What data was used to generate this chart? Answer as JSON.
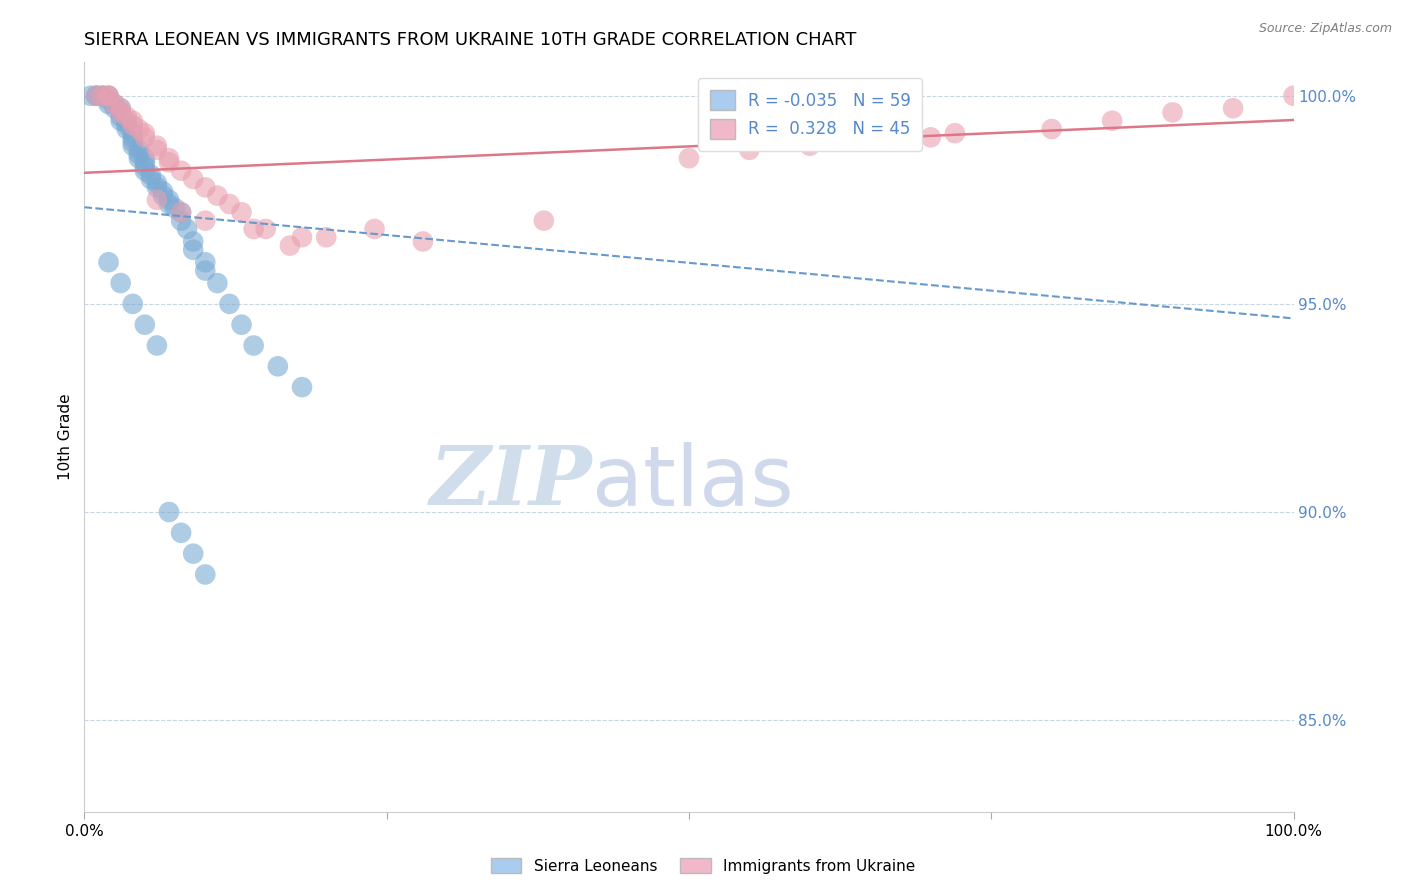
{
  "title": "SIERRA LEONEAN VS IMMIGRANTS FROM UKRAINE 10TH GRADE CORRELATION CHART",
  "source": "Source: ZipAtlas.com",
  "ylabel": "10th Grade",
  "blue_R": -0.035,
  "blue_N": 59,
  "pink_R": 0.328,
  "pink_N": 45,
  "blue_color": "#7aaad4",
  "pink_color": "#e8a0b0",
  "trend_blue_color": "#6699cc",
  "trend_pink_color": "#dd7788",
  "legend_blue_color": "#aaccee",
  "legend_pink_color": "#f0b8c8",
  "ylim_low": 0.828,
  "ylim_high": 1.008,
  "xlim_low": 0.0,
  "xlim_high": 1.0,
  "yticks": [
    0.85,
    0.9,
    0.95,
    1.0
  ],
  "ytick_labels": [
    "85.0%",
    "90.0%",
    "95.0%",
    "100.0%"
  ],
  "blue_scatter_x": [
    0.005,
    0.01,
    0.01,
    0.015,
    0.015,
    0.02,
    0.02,
    0.02,
    0.025,
    0.025,
    0.03,
    0.03,
    0.03,
    0.03,
    0.035,
    0.035,
    0.035,
    0.04,
    0.04,
    0.04,
    0.04,
    0.045,
    0.045,
    0.045,
    0.05,
    0.05,
    0.05,
    0.05,
    0.055,
    0.055,
    0.06,
    0.06,
    0.065,
    0.065,
    0.07,
    0.07,
    0.075,
    0.08,
    0.08,
    0.085,
    0.09,
    0.09,
    0.1,
    0.1,
    0.11,
    0.12,
    0.13,
    0.14,
    0.16,
    0.18,
    0.02,
    0.03,
    0.04,
    0.05,
    0.06,
    0.07,
    0.08,
    0.09,
    0.1
  ],
  "blue_scatter_y": [
    1.0,
    1.0,
    1.0,
    1.0,
    1.0,
    1.0,
    0.999,
    0.998,
    0.998,
    0.997,
    0.997,
    0.996,
    0.995,
    0.994,
    0.994,
    0.993,
    0.992,
    0.991,
    0.99,
    0.989,
    0.988,
    0.987,
    0.986,
    0.985,
    0.985,
    0.984,
    0.983,
    0.982,
    0.981,
    0.98,
    0.979,
    0.978,
    0.977,
    0.976,
    0.975,
    0.974,
    0.973,
    0.972,
    0.97,
    0.968,
    0.965,
    0.963,
    0.96,
    0.958,
    0.955,
    0.95,
    0.945,
    0.94,
    0.935,
    0.93,
    0.96,
    0.955,
    0.95,
    0.945,
    0.94,
    0.9,
    0.895,
    0.89,
    0.885
  ],
  "pink_scatter_x": [
    0.01,
    0.015,
    0.02,
    0.02,
    0.025,
    0.03,
    0.03,
    0.035,
    0.04,
    0.04,
    0.045,
    0.05,
    0.05,
    0.06,
    0.06,
    0.07,
    0.07,
    0.08,
    0.09,
    0.1,
    0.11,
    0.12,
    0.13,
    0.15,
    0.17,
    0.2,
    0.24,
    0.28,
    0.06,
    0.08,
    0.1,
    0.14,
    0.18,
    0.55,
    0.6,
    0.65,
    0.7,
    0.8,
    0.9,
    1.0,
    0.5,
    0.72,
    0.85,
    0.95,
    0.38
  ],
  "pink_scatter_y": [
    1.0,
    1.0,
    1.0,
    1.0,
    0.998,
    0.997,
    0.996,
    0.995,
    0.994,
    0.993,
    0.992,
    0.991,
    0.99,
    0.988,
    0.987,
    0.985,
    0.984,
    0.982,
    0.98,
    0.978,
    0.976,
    0.974,
    0.972,
    0.968,
    0.964,
    0.966,
    0.968,
    0.965,
    0.975,
    0.972,
    0.97,
    0.968,
    0.966,
    0.987,
    0.988,
    0.989,
    0.99,
    0.992,
    0.996,
    1.0,
    0.985,
    0.991,
    0.994,
    0.997,
    0.97
  ],
  "watermark_zip": "ZIP",
  "watermark_atlas": "atlas",
  "title_fontsize": 13,
  "tick_color": "#5588cc",
  "grid_color": "#bbccdd"
}
